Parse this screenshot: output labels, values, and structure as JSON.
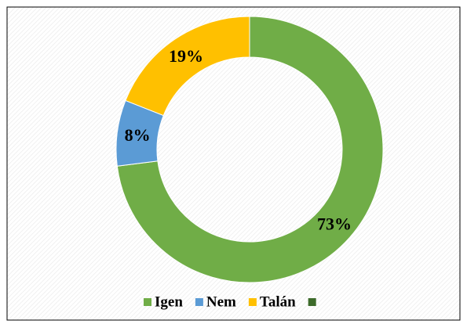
{
  "chart_data": {
    "type": "donut",
    "categories": [
      "Igen",
      "Nem",
      "Talán",
      null
    ],
    "values": [
      73,
      8,
      19,
      null
    ],
    "value_labels": [
      "73%",
      "8%",
      "19%",
      null
    ],
    "colors": [
      "#70ad47",
      "#5b9bd5",
      "#ffc000",
      "#3d6b2b"
    ],
    "legend": "bottom"
  }
}
